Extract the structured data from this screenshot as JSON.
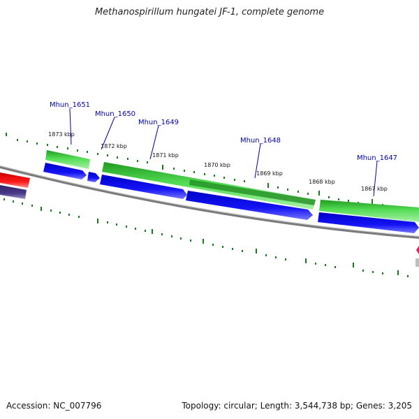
{
  "title": "Methanospirillum hungatei JF-1, complete genome",
  "footer": {
    "accession": "Accession: NC_007796",
    "summary": "Topology: circular; Length: 3,544,738 bp; Genes: 3,205"
  },
  "genes": [
    {
      "label": "Mhun_1651"
    },
    {
      "label": "Mhun_1650"
    },
    {
      "label": "Mhun_1649"
    },
    {
      "label": "Mhun_1648"
    },
    {
      "label": "Mhun_1647"
    }
  ],
  "ticks": [
    {
      "label": "1873 kbp"
    },
    {
      "label": "1872 kbp"
    },
    {
      "label": "1871 kbp"
    },
    {
      "label": "1870 kbp"
    },
    {
      "label": "1869 kbp"
    },
    {
      "label": "1868 kbp"
    },
    {
      "label": "1867 kbp"
    }
  ],
  "colors": {
    "gene_green": "#33cc33",
    "gene_dark_green": "#1e8a1e",
    "cds_blue": "#1010ee",
    "backbone_gray": "#808080",
    "label_blue": "#0000aa",
    "tick_green": "#1a7a1a",
    "red_feature": "#ee1111",
    "purple_feature": "#4a3a8a"
  }
}
